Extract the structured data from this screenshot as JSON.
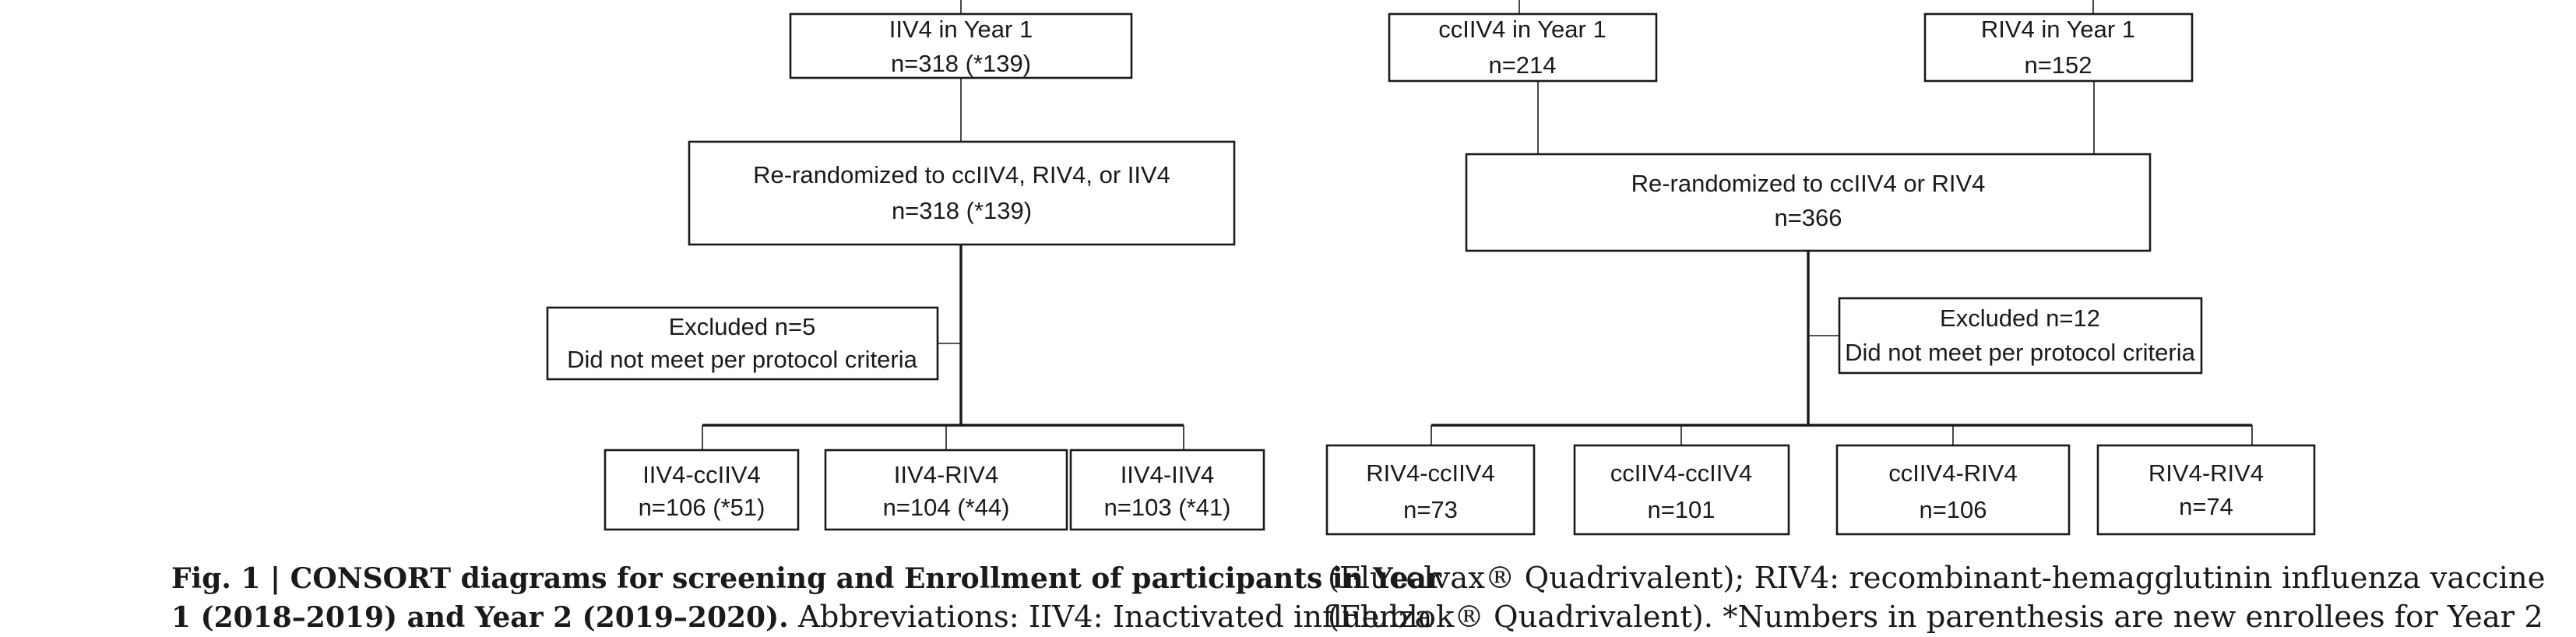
{
  "left_diagram": {
    "year1_box": {
      "line1": "IIV4 in Year 1",
      "line2": "n=318 (*139)"
    },
    "rerandom_box": {
      "line1": "Re-randomized to ccIIV4, RIV4, or IIV4",
      "line2": "n=318 (*139)"
    },
    "excluded_box": {
      "line1": "Excluded n=5",
      "line2": "Did not meet per protocol criteria"
    },
    "arms": [
      {
        "line1": "IIV4-ccIIV4",
        "line2": "n=106 (*51)"
      },
      {
        "line1": "IIV4-RIV4",
        "line2": "n=104 (*44)"
      },
      {
        "line1": "IIV4-IIV4",
        "line2": "n=103 (*41)"
      }
    ]
  },
  "right_diagram": {
    "year1_boxes": [
      {
        "line1": "ccIIV4 in Year 1",
        "line2": "n=214"
      },
      {
        "line1": "RIV4 in Year 1",
        "line2": "n=152"
      }
    ],
    "rerandom_box": {
      "line1": "Re-randomized to ccIIV4 or RIV4",
      "line2": "n=366"
    },
    "excluded_box": {
      "line1": "Excluded n=12",
      "line2": "Did not meet per protocol criteria"
    },
    "arms": [
      {
        "line1": "RIV4-ccIIV4",
        "line2": "n=73"
      },
      {
        "line1": "ccIIV4-ccIIV4",
        "line2": "n=101"
      },
      {
        "line1": "ccIIV4-RIV4",
        "line2": "n=106"
      },
      {
        "line1": "RIV4-RIV4",
        "line2": "n=74"
      }
    ]
  },
  "caption": {
    "left_line1_bold": "Fig. 1 | CONSORT diagrams for screening and Enrollment of participants in Year",
    "left_line2_bold": "1 (2018–2019) and Year 2 (2019–2020).",
    "left_line2_rest": " Abbreviations: IIV4: Inactivated influenza",
    "right_line1": "(Flucelvax® Quadrivalent); RIV4: recombinant-hemagglutinin influenza vaccine",
    "right_line2": "(Flublok® Quadrivalent). *Numbers in parenthesis are new enrollees for Year 2"
  }
}
